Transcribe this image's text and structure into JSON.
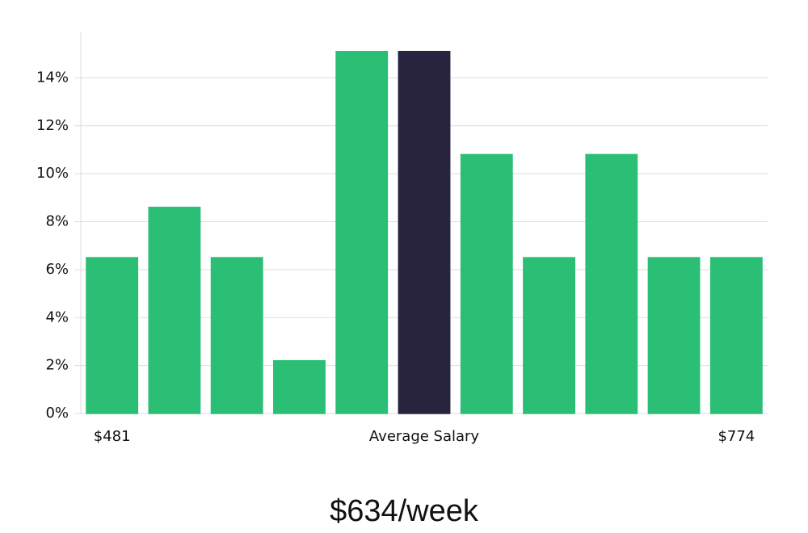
{
  "chart_data": {
    "type": "bar",
    "categories": [
      "$481",
      null,
      null,
      null,
      null,
      "Average Salary",
      null,
      null,
      null,
      null,
      "$774"
    ],
    "values": [
      6.5,
      8.6,
      6.5,
      2.2,
      15.1,
      15.1,
      10.8,
      6.5,
      10.8,
      6.5,
      6.5
    ],
    "colors": [
      "#2bbf76",
      "#2bbf76",
      "#2bbf76",
      "#2bbf76",
      "#2bbf76",
      "#28243f",
      "#2bbf76",
      "#2bbf76",
      "#2bbf76",
      "#2bbf76",
      "#2bbf76"
    ],
    "ylim": [
      0,
      15.9
    ],
    "yticks": [
      {
        "value": 0,
        "label": "0%"
      },
      {
        "value": 2,
        "label": "2%"
      },
      {
        "value": 4,
        "label": "4%"
      },
      {
        "value": 6,
        "label": "6%"
      },
      {
        "value": 8,
        "label": "8%"
      },
      {
        "value": 10,
        "label": "10%"
      },
      {
        "value": 12,
        "label": "12%"
      },
      {
        "value": 14,
        "label": "14%"
      }
    ],
    "grid": true,
    "caption": "$634/week"
  }
}
